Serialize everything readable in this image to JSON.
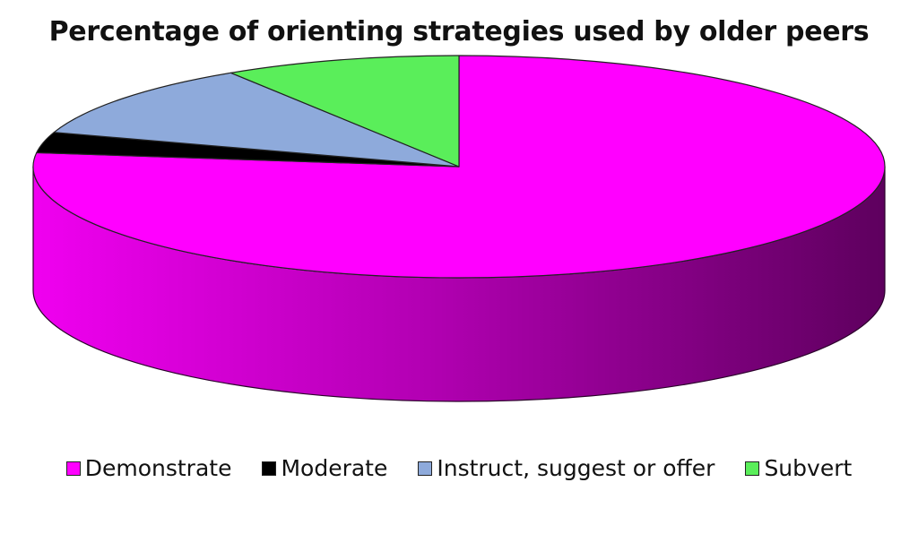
{
  "chart_data": {
    "type": "pie",
    "title": "Percentage of orienting strategies used by older peers",
    "slices": [
      {
        "label": "Demonstrate",
        "value": 77,
        "color": "#ff00ff"
      },
      {
        "label": "Moderate",
        "value": 3,
        "color": "#000000"
      },
      {
        "label": "Instruct, suggest or offer",
        "value": 11,
        "color": "#8eaadb"
      },
      {
        "label": "Subvert",
        "value": 9,
        "color": "#5aee5a"
      }
    ],
    "style": "3d",
    "legend_position": "bottom"
  }
}
